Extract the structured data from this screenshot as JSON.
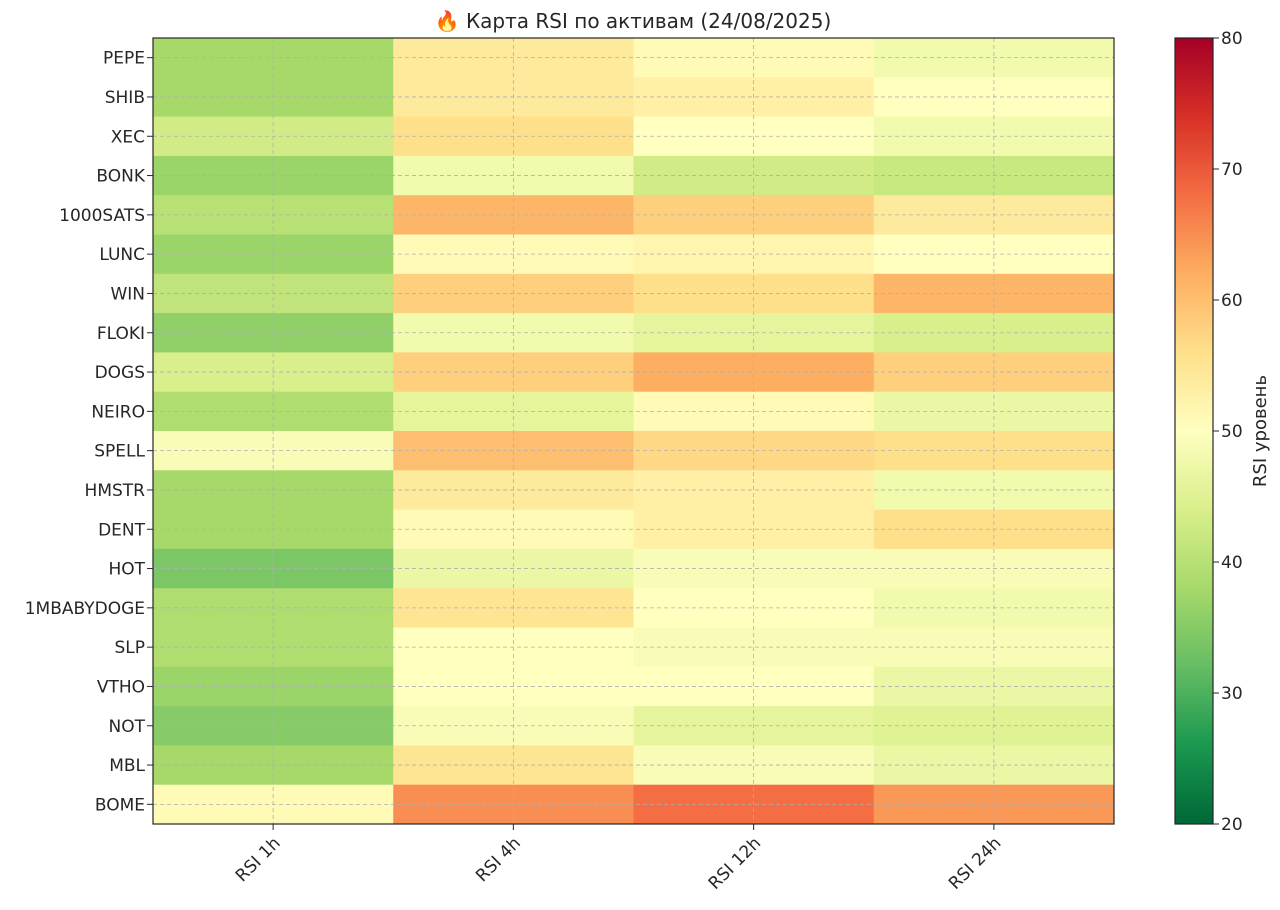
{
  "chart_data": {
    "type": "heatmap",
    "title": "🔥 Карта RSI по активам (24/08/2025)",
    "x_categories": [
      "RSI 1h",
      "RSI 4h",
      "RSI 12h",
      "RSI 24h"
    ],
    "y_categories": [
      "PEPE",
      "SHIB",
      "XEC",
      "BONK",
      "1000SATS",
      "LUNC",
      "WIN",
      "FLOKI",
      "DOGS",
      "NEIRO",
      "SPELL",
      "HMSTR",
      "DENT",
      "HOT",
      "1MBABYDOGE",
      "SLP",
      "VTHO",
      "NOT",
      "MBL",
      "BOME"
    ],
    "values": [
      [
        38,
        54,
        51,
        48
      ],
      [
        38,
        54,
        53,
        50
      ],
      [
        43,
        56,
        50,
        48
      ],
      [
        37,
        48,
        43,
        42
      ],
      [
        40,
        61,
        58,
        54
      ],
      [
        37,
        51,
        52,
        50
      ],
      [
        41,
        58,
        56,
        61
      ],
      [
        36,
        48,
        46,
        44
      ],
      [
        44,
        58,
        62,
        58
      ],
      [
        39,
        46,
        51,
        47
      ],
      [
        49,
        60,
        57,
        56
      ],
      [
        38,
        54,
        53,
        48
      ],
      [
        38,
        51,
        53,
        56
      ],
      [
        34,
        47,
        49,
        49
      ],
      [
        39,
        55,
        50,
        48
      ],
      [
        39,
        50,
        49,
        49
      ],
      [
        37,
        50,
        50,
        47
      ],
      [
        35,
        49,
        46,
        45
      ],
      [
        38,
        55,
        49,
        47
      ],
      [
        51,
        65,
        68,
        64
      ]
    ],
    "colorbar": {
      "label": "RSI уровень",
      "min": 20,
      "max": 80,
      "ticks": [
        "20",
        "30",
        "40",
        "50",
        "60",
        "70",
        "80"
      ]
    },
    "colormap": [
      "#006837",
      "#1a9850",
      "#66bd63",
      "#a6d96a",
      "#d9ef8b",
      "#ffffbf",
      "#fee08b",
      "#fdae61",
      "#f46d43",
      "#d73027",
      "#a50026"
    ],
    "grid": true
  }
}
